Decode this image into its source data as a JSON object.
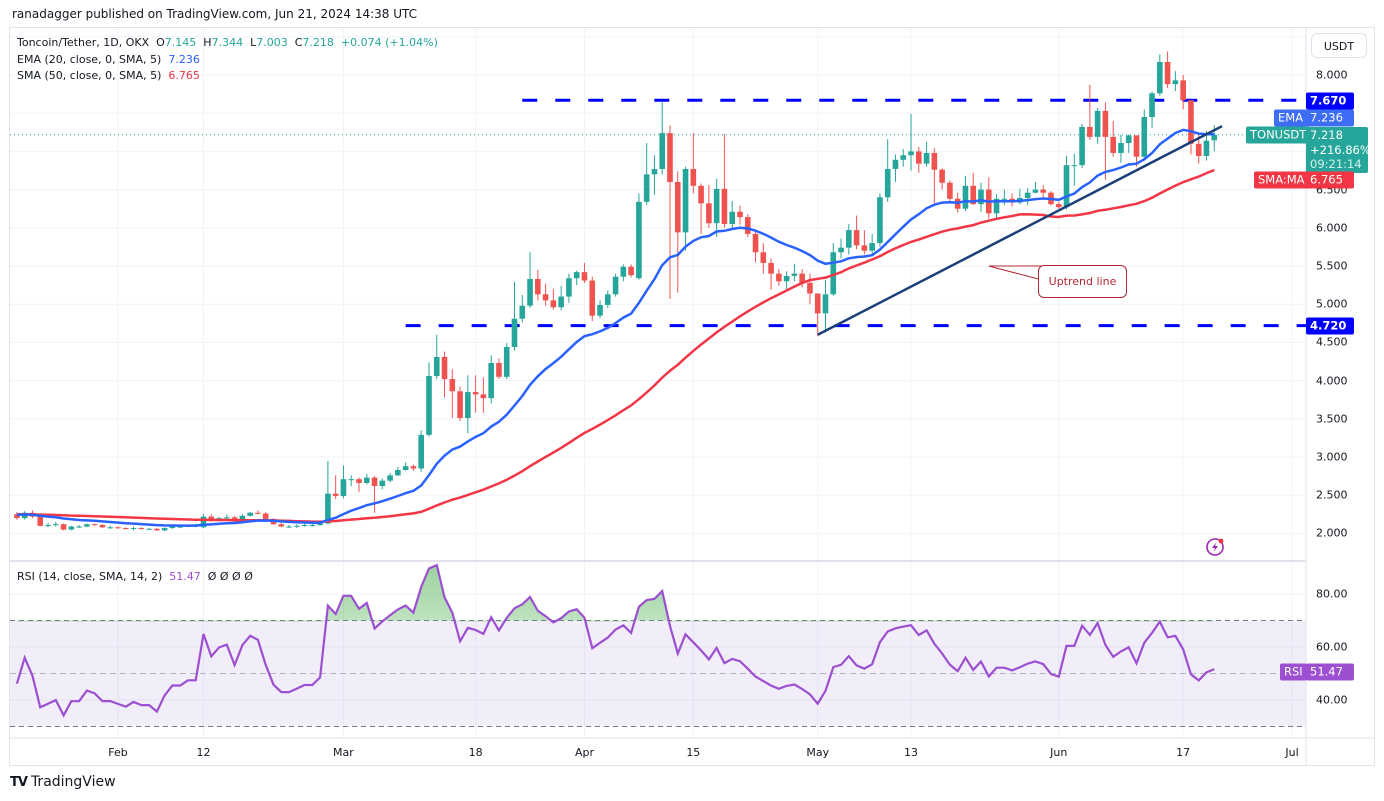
{
  "publisher_line": "ranadagger published on TradingView.com, Jun 21, 2024 14:38 UTC",
  "legend": {
    "symbol": "Toncoin/Tether, 1D, OKX",
    "o_label": "O",
    "o": "7.145",
    "h_label": "H",
    "h": "7.344",
    "l_label": "L",
    "l": "7.003",
    "c_label": "C",
    "c": "7.218",
    "change": "+0.074 (+1.04%)",
    "ema_label": "EMA (20, close, 0, SMA, 5)",
    "ema_value": "7.236",
    "sma_label": "SMA (50, close, 0, SMA, 5)",
    "sma_value": "6.765",
    "rsi_label": "RSI (14, close, SMA, 14, 2)",
    "rsi_value": "51.47",
    "rsi_extra": "Ø  Ø  Ø  Ø"
  },
  "price_axis": {
    "currency": "USDT",
    "ticks": [
      "8.000",
      "6.500",
      "6.000",
      "5.500",
      "5.000",
      "4.500",
      "4.000",
      "3.500",
      "3.000",
      "2.500",
      "2.000"
    ],
    "tags": {
      "resistance": "7.670",
      "ema_name": "EMA",
      "ema": "7.236",
      "symbol": "TONUSDT",
      "last": "7.218",
      "change_pct": "+216.86%",
      "countdown": "09:21:14",
      "sma_name": "SMA:MA",
      "sma": "6.765",
      "support": "4.720"
    }
  },
  "rsi_axis": {
    "ticks": [
      "80.00",
      "60.00",
      "40.00"
    ],
    "tag_name": "RSI",
    "tag_value": "51.47"
  },
  "time_axis": [
    {
      "label": "Feb",
      "date": "2024-02-01"
    },
    {
      "label": "12",
      "date": "2024-02-12"
    },
    {
      "label": "Mar",
      "date": "2024-03-01"
    },
    {
      "label": "18",
      "date": "2024-03-18"
    },
    {
      "label": "Apr",
      "date": "2024-04-01"
    },
    {
      "label": "15",
      "date": "2024-04-15"
    },
    {
      "label": "May",
      "date": "2024-05-01"
    },
    {
      "label": "13",
      "date": "2024-05-13"
    },
    {
      "label": "Jun",
      "date": "2024-06-01"
    },
    {
      "label": "17",
      "date": "2024-06-17"
    },
    {
      "label": "Jul",
      "date": "2024-07-01"
    }
  ],
  "annotation": {
    "callout_text": "Uptrend line"
  },
  "footer": {
    "brand": "TradingView",
    "brand_mark": "TV"
  },
  "icons": {
    "alert": "lightning-icon"
  },
  "colors": {
    "up": "#26a69a",
    "down": "#ef5350",
    "ema": "#2962ff",
    "sma": "#f23645",
    "rsi": "#9c4fd0",
    "levels": "#0000ff",
    "trendline": "#1c3f78",
    "callout": "#b22833"
  },
  "chart_data": {
    "type": "candlestick",
    "interval": "1D",
    "first_date": "2024-01-19",
    "y_range": [
      1.7,
      8.6
    ],
    "rsi_range": [
      25,
      90
    ],
    "rsi_bands": [
      70,
      50,
      30
    ],
    "grid": true,
    "indicators": [
      {
        "name": "EMA",
        "period": 20
      },
      {
        "name": "SMA",
        "period": 50
      },
      {
        "name": "RSI",
        "period": 14
      }
    ],
    "horizontal_levels": [
      {
        "value": 7.67,
        "from_date": "2024-03-24"
      },
      {
        "value": 4.72,
        "from_date": "2024-03-09"
      }
    ],
    "trendline": {
      "from": {
        "date": "2024-05-01",
        "value": 4.6
      },
      "to": {
        "date": "2024-06-22",
        "value": 7.33
      }
    },
    "callout_points_to": {
      "date": "2024-05-23",
      "value": 5.5
    },
    "ohlc": [
      [
        2.25,
        2.28,
        2.18,
        2.2
      ],
      [
        2.2,
        2.29,
        2.18,
        2.27
      ],
      [
        2.27,
        2.3,
        2.2,
        2.22
      ],
      [
        2.22,
        2.23,
        2.09,
        2.1
      ],
      [
        2.1,
        2.14,
        2.08,
        2.11
      ],
      [
        2.11,
        2.15,
        2.09,
        2.12
      ],
      [
        2.12,
        2.13,
        2.04,
        2.05
      ],
      [
        2.05,
        2.1,
        2.04,
        2.09
      ],
      [
        2.09,
        2.11,
        2.07,
        2.09
      ],
      [
        2.09,
        2.13,
        2.08,
        2.12
      ],
      [
        2.12,
        2.13,
        2.1,
        2.11
      ],
      [
        2.11,
        2.12,
        2.07,
        2.08
      ],
      [
        2.08,
        2.1,
        2.06,
        2.08
      ],
      [
        2.08,
        2.09,
        2.06,
        2.07
      ],
      [
        2.07,
        2.08,
        2.05,
        2.06
      ],
      [
        2.06,
        2.09,
        2.04,
        2.07
      ],
      [
        2.07,
        2.08,
        2.05,
        2.06
      ],
      [
        2.06,
        2.07,
        2.05,
        2.06
      ],
      [
        2.06,
        2.07,
        2.03,
        2.04
      ],
      [
        2.04,
        2.08,
        2.03,
        2.07
      ],
      [
        2.07,
        2.1,
        2.06,
        2.09
      ],
      [
        2.09,
        2.11,
        2.07,
        2.09
      ],
      [
        2.09,
        2.11,
        2.08,
        2.1
      ],
      [
        2.1,
        2.13,
        2.08,
        2.1
      ],
      [
        2.08,
        2.25,
        2.07,
        2.22
      ],
      [
        2.22,
        2.25,
        2.15,
        2.17
      ],
      [
        2.17,
        2.22,
        2.16,
        2.2
      ],
      [
        2.2,
        2.25,
        2.19,
        2.21
      ],
      [
        2.21,
        2.23,
        2.14,
        2.16
      ],
      [
        2.16,
        2.25,
        2.15,
        2.23
      ],
      [
        2.23,
        2.28,
        2.22,
        2.27
      ],
      [
        2.27,
        2.3,
        2.25,
        2.26
      ],
      [
        2.26,
        2.28,
        2.18,
        2.19
      ],
      [
        2.19,
        2.2,
        2.11,
        2.12
      ],
      [
        2.12,
        2.14,
        2.08,
        2.09
      ],
      [
        2.09,
        2.11,
        2.07,
        2.09
      ],
      [
        2.09,
        2.12,
        2.07,
        2.1
      ],
      [
        2.1,
        2.13,
        2.09,
        2.11
      ],
      [
        2.11,
        2.13,
        2.09,
        2.11
      ],
      [
        2.11,
        2.17,
        2.1,
        2.13
      ],
      [
        2.13,
        2.95,
        2.12,
        2.52
      ],
      [
        2.52,
        2.76,
        2.45,
        2.49
      ],
      [
        2.49,
        2.89,
        2.46,
        2.71
      ],
      [
        2.71,
        2.76,
        2.62,
        2.71
      ],
      [
        2.71,
        2.73,
        2.54,
        2.66
      ],
      [
        2.66,
        2.78,
        2.64,
        2.73
      ],
      [
        2.73,
        2.75,
        2.27,
        2.62
      ],
      [
        2.62,
        2.72,
        2.58,
        2.69
      ],
      [
        2.69,
        2.79,
        2.67,
        2.76
      ],
      [
        2.76,
        2.87,
        2.75,
        2.83
      ],
      [
        2.83,
        2.93,
        2.82,
        2.88
      ],
      [
        2.88,
        2.9,
        2.82,
        2.85
      ],
      [
        2.85,
        3.35,
        2.8,
        3.29
      ],
      [
        3.29,
        4.24,
        3.27,
        4.06
      ],
      [
        4.06,
        4.6,
        4.02,
        4.31
      ],
      [
        4.31,
        4.38,
        3.78,
        4.02
      ],
      [
        4.02,
        4.15,
        3.51,
        3.86
      ],
      [
        3.86,
        3.92,
        3.47,
        3.51
      ],
      [
        3.51,
        4.07,
        3.31,
        3.85
      ],
      [
        3.85,
        4.07,
        3.58,
        3.82
      ],
      [
        3.82,
        4.04,
        3.58,
        3.77
      ],
      [
        3.77,
        4.33,
        3.7,
        4.23
      ],
      [
        4.23,
        4.29,
        4.02,
        4.05
      ],
      [
        4.05,
        4.49,
        4.02,
        4.44
      ],
      [
        4.44,
        5.29,
        4.39,
        4.81
      ],
      [
        4.81,
        5.12,
        4.76,
        4.98
      ],
      [
        4.98,
        5.68,
        4.95,
        5.33
      ],
      [
        5.33,
        5.45,
        5.05,
        5.13
      ],
      [
        5.13,
        5.27,
        4.98,
        5.05
      ],
      [
        5.05,
        5.2,
        4.93,
        4.96
      ],
      [
        4.96,
        5.24,
        4.92,
        5.1
      ],
      [
        5.1,
        5.4,
        5.02,
        5.34
      ],
      [
        5.34,
        5.44,
        5.25,
        5.42
      ],
      [
        5.42,
        5.54,
        5.28,
        5.31
      ],
      [
        5.31,
        5.36,
        4.78,
        4.85
      ],
      [
        4.85,
        5.05,
        4.82,
        4.99
      ],
      [
        4.99,
        5.18,
        4.95,
        5.13
      ],
      [
        5.13,
        5.4,
        5.1,
        5.36
      ],
      [
        5.36,
        5.52,
        5.3,
        5.49
      ],
      [
        5.49,
        5.52,
        5.35,
        5.38
      ],
      [
        5.34,
        6.45,
        5.32,
        6.34
      ],
      [
        6.34,
        7.11,
        6.3,
        6.7
      ],
      [
        6.7,
        6.95,
        6.43,
        6.77
      ],
      [
        6.77,
        7.66,
        6.7,
        7.24
      ],
      [
        7.24,
        7.34,
        5.07,
        6.6
      ],
      [
        6.6,
        6.74,
        5.15,
        5.94
      ],
      [
        5.94,
        6.8,
        5.7,
        6.77
      ],
      [
        6.77,
        7.24,
        6.45,
        6.55
      ],
      [
        6.55,
        6.58,
        5.92,
        6.32
      ],
      [
        6.32,
        6.56,
        6.0,
        6.06
      ],
      [
        6.06,
        6.64,
        5.88,
        6.51
      ],
      [
        6.51,
        7.23,
        6.0,
        6.05
      ],
      [
        6.05,
        6.35,
        5.98,
        6.21
      ],
      [
        6.21,
        6.29,
        6.04,
        6.14
      ],
      [
        6.14,
        6.18,
        5.88,
        5.92
      ],
      [
        5.92,
        5.98,
        5.55,
        5.68
      ],
      [
        5.68,
        5.8,
        5.4,
        5.54
      ],
      [
        5.54,
        5.6,
        5.19,
        5.4
      ],
      [
        5.4,
        5.46,
        5.24,
        5.3
      ],
      [
        5.3,
        5.43,
        5.17,
        5.37
      ],
      [
        5.37,
        5.53,
        5.3,
        5.4
      ],
      [
        5.4,
        5.46,
        5.22,
        5.28
      ],
      [
        5.28,
        5.4,
        5.0,
        5.14
      ],
      [
        5.14,
        5.14,
        4.58,
        4.88
      ],
      [
        4.88,
        5.32,
        4.63,
        5.13
      ],
      [
        5.13,
        5.8,
        5.11,
        5.68
      ],
      [
        5.68,
        5.86,
        5.6,
        5.74
      ],
      [
        5.74,
        6.05,
        5.65,
        5.97
      ],
      [
        5.97,
        6.16,
        5.72,
        5.77
      ],
      [
        5.77,
        5.97,
        5.65,
        5.7
      ],
      [
        5.7,
        5.92,
        5.66,
        5.8
      ],
      [
        5.8,
        6.45,
        5.75,
        6.4
      ],
      [
        6.4,
        7.16,
        6.34,
        6.77
      ],
      [
        6.77,
        6.96,
        6.6,
        6.89
      ],
      [
        6.89,
        7.03,
        6.8,
        6.95
      ],
      [
        6.95,
        7.49,
        6.75,
        7.0
      ],
      [
        7.0,
        7.06,
        6.72,
        6.84
      ],
      [
        6.84,
        7.13,
        6.8,
        6.98
      ],
      [
        6.98,
        7.04,
        6.32,
        6.76
      ],
      [
        6.76,
        6.78,
        6.5,
        6.59
      ],
      [
        6.59,
        6.62,
        6.34,
        6.38
      ],
      [
        6.38,
        6.46,
        6.2,
        6.25
      ],
      [
        6.25,
        6.68,
        6.22,
        6.55
      ],
      [
        6.55,
        6.72,
        6.3,
        6.31
      ],
      [
        6.31,
        6.59,
        6.21,
        6.5
      ],
      [
        6.5,
        6.66,
        6.12,
        6.19
      ],
      [
        6.19,
        6.44,
        6.1,
        6.38
      ],
      [
        6.38,
        6.5,
        6.3,
        6.38
      ],
      [
        6.38,
        6.45,
        6.28,
        6.33
      ],
      [
        6.33,
        6.51,
        6.31,
        6.39
      ],
      [
        6.39,
        6.52,
        6.3,
        6.46
      ],
      [
        6.46,
        6.6,
        6.45,
        6.5
      ],
      [
        6.5,
        6.56,
        6.4,
        6.46
      ],
      [
        6.46,
        6.48,
        6.29,
        6.31
      ],
      [
        6.31,
        6.34,
        6.25,
        6.27
      ],
      [
        6.27,
        6.94,
        6.24,
        6.82
      ],
      [
        6.82,
        6.97,
        6.55,
        6.82
      ],
      [
        6.82,
        7.36,
        6.78,
        7.32
      ],
      [
        7.32,
        7.87,
        7.15,
        7.19
      ],
      [
        7.19,
        7.57,
        7.1,
        7.53
      ],
      [
        7.53,
        7.64,
        6.63,
        7.19
      ],
      [
        7.19,
        7.4,
        6.93,
        6.98
      ],
      [
        6.98,
        7.22,
        6.85,
        7.11
      ],
      [
        7.11,
        7.22,
        6.98,
        7.21
      ],
      [
        7.21,
        7.21,
        6.8,
        6.93
      ],
      [
        6.93,
        7.55,
        6.9,
        7.45
      ],
      [
        7.45,
        7.78,
        7.31,
        7.76
      ],
      [
        7.76,
        8.27,
        7.73,
        8.17
      ],
      [
        8.17,
        8.31,
        7.83,
        7.88
      ],
      [
        7.88,
        8.05,
        7.79,
        7.93
      ],
      [
        7.93,
        8.0,
        7.55,
        7.67
      ],
      [
        7.67,
        7.67,
        6.96,
        7.1
      ],
      [
        7.1,
        7.22,
        6.84,
        6.94
      ],
      [
        6.94,
        7.27,
        6.88,
        7.14
      ],
      [
        7.145,
        7.344,
        7.003,
        7.218
      ]
    ]
  }
}
